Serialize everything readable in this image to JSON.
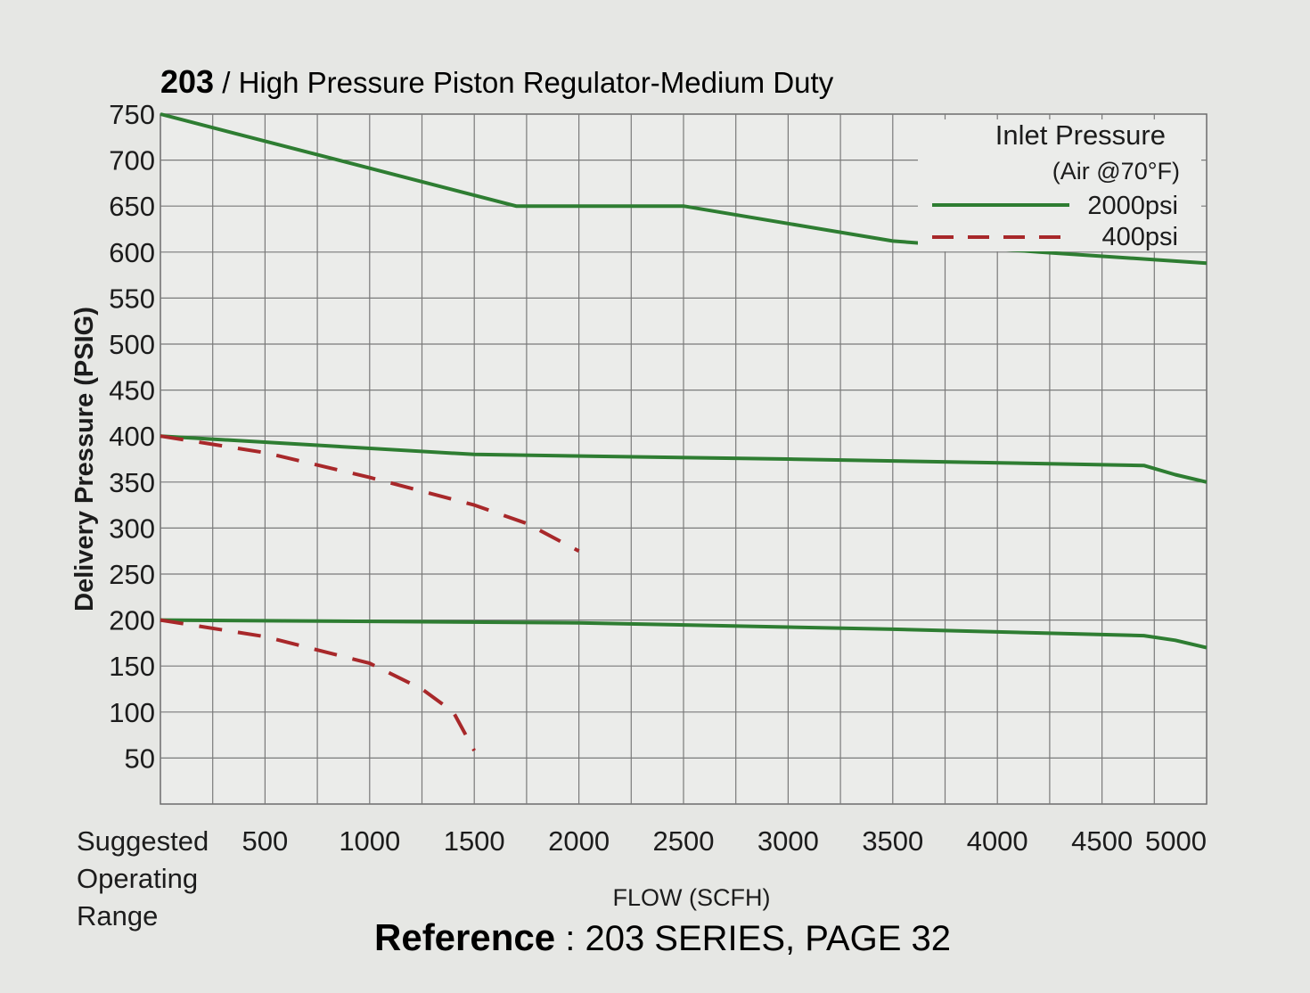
{
  "chart_data": {
    "type": "line",
    "title_number": "203",
    "title_text": " / High Pressure Piston Regulator-Medium Duty",
    "ylabel": "Delivery Pressure (PSIG)",
    "xlabel": "FLOW (SCFH)",
    "yticks": [
      "750",
      "700",
      "650",
      "600",
      "550",
      "500",
      "450",
      "400",
      "350",
      "300",
      "250",
      "200",
      "150",
      "100",
      "50"
    ],
    "xticks": [
      "500",
      "1000",
      "1500",
      "2000",
      "2500",
      "3000",
      "3500",
      "4000",
      "4500",
      "5000"
    ],
    "x_first_label": [
      "Suggested",
      "Operating",
      "Range"
    ],
    "xlim": [
      0,
      5000
    ],
    "ylim": [
      0,
      750
    ],
    "grid": true,
    "legend": {
      "title": "Inlet Pressure",
      "subtitle": "(Air @70°F)",
      "placement": "top-right",
      "entries": [
        {
          "label": "2000psi",
          "color": "#2e7d32",
          "style": "solid"
        },
        {
          "label": "400psi",
          "color": "#a8282a",
          "style": "dashed"
        }
      ]
    },
    "series": [
      {
        "inlet": "2000psi",
        "style": "solid",
        "color": "#2e7d32",
        "x": [
          0,
          1700,
          2500,
          3500,
          4200,
          5000
        ],
        "y": [
          750,
          650,
          650,
          612,
          600,
          588
        ]
      },
      {
        "inlet": "2000psi",
        "style": "solid",
        "color": "#2e7d32",
        "x": [
          0,
          1500,
          3000,
          4700,
          4850,
          5000
        ],
        "y": [
          400,
          380,
          375,
          368,
          358,
          350
        ]
      },
      {
        "inlet": "2000psi",
        "style": "solid",
        "color": "#2e7d32",
        "x": [
          0,
          2000,
          3500,
          4700,
          4850,
          5000
        ],
        "y": [
          200,
          197,
          190,
          183,
          178,
          170
        ]
      },
      {
        "inlet": "400psi",
        "style": "dashed",
        "color": "#a8282a",
        "x": [
          0,
          500,
          1000,
          1500,
          1750,
          2000
        ],
        "y": [
          400,
          382,
          355,
          325,
          305,
          275
        ]
      },
      {
        "inlet": "400psi",
        "style": "dashed",
        "color": "#a8282a",
        "x": [
          0,
          500,
          1000,
          1250,
          1400,
          1500
        ],
        "y": [
          200,
          182,
          153,
          125,
          100,
          58
        ]
      }
    ]
  },
  "footer": {
    "reference_bold": "Reference",
    "reference_rest": " : 203 SERIES, PAGE 32"
  }
}
